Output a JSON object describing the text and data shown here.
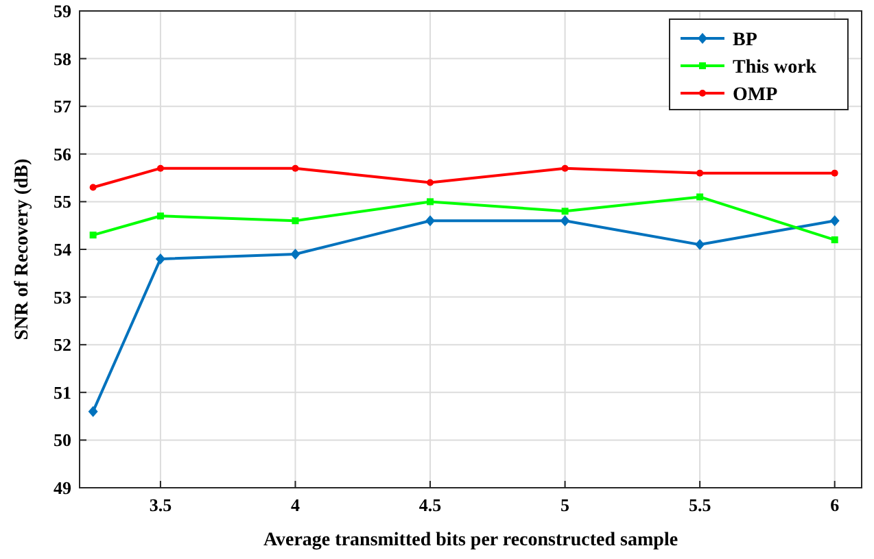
{
  "chart_data": {
    "type": "line",
    "xlabel": "Average transmitted bits per reconstructed sample",
    "ylabel": "SNR of Recovery (dB)",
    "x": [
      3.25,
      3.5,
      4,
      4.5,
      5,
      5.5,
      6
    ],
    "xlim": [
      3.2,
      6.1
    ],
    "xticks": [
      3.5,
      4,
      4.5,
      5,
      5.5,
      6
    ],
    "ylim": [
      49,
      59
    ],
    "yticks": [
      49,
      50,
      51,
      52,
      53,
      54,
      55,
      56,
      57,
      58,
      59
    ],
    "grid": true,
    "legend": "top right",
    "series": [
      {
        "name": "BP",
        "color": "#0072bd",
        "marker": "diamond",
        "values": [
          50.6,
          53.8,
          53.9,
          54.6,
          54.6,
          54.1,
          54.6
        ]
      },
      {
        "name": "This work",
        "color": "#00ff00",
        "marker": "square",
        "values": [
          54.3,
          54.7,
          54.6,
          55.0,
          54.8,
          55.1,
          54.2
        ]
      },
      {
        "name": "OMP",
        "color": "#ff0000",
        "marker": "circle",
        "values": [
          55.3,
          55.7,
          55.7,
          55.4,
          55.7,
          55.6,
          55.6
        ]
      }
    ]
  }
}
